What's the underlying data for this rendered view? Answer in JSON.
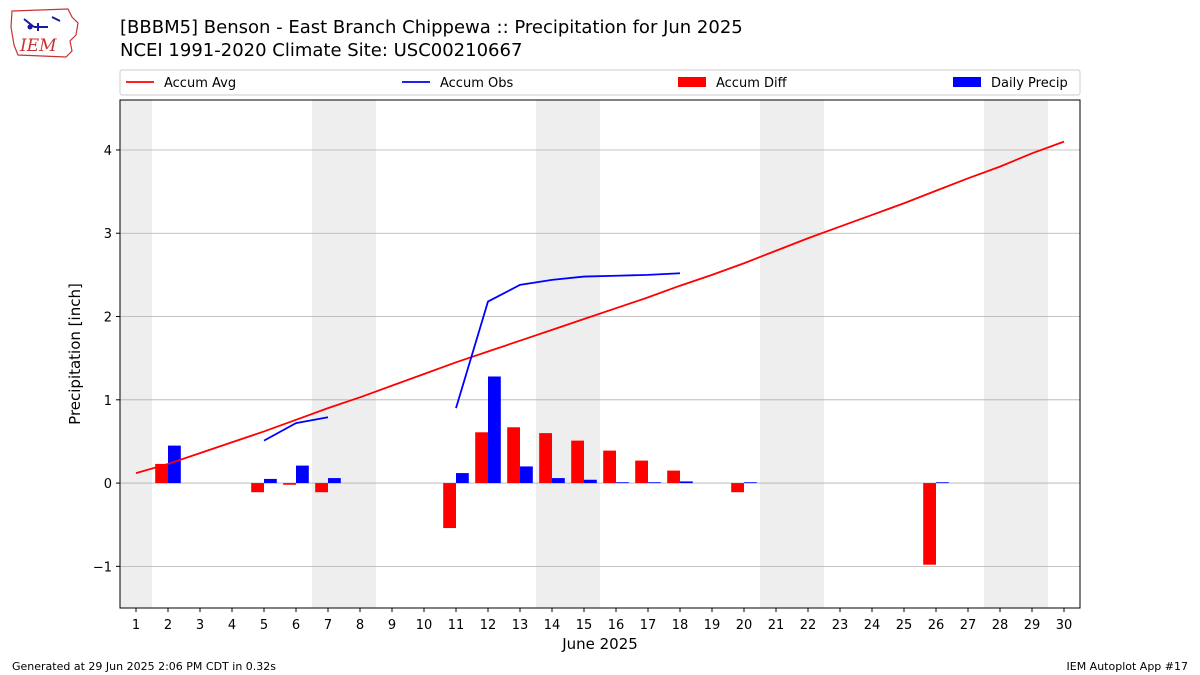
{
  "header": {
    "logo_text": "IEM",
    "title_line1": "[BBBM5] Benson - East Branch Chippewa :: Precipitation for Jun 2025",
    "title_line2": "NCEI 1991-2020 Climate Site: USC00210667"
  },
  "footer": {
    "left": "Generated at 29 Jun 2025 2:06 PM CDT in 0.32s",
    "right": "IEM Autoplot App #17"
  },
  "colors": {
    "accum_avg": "#ff0000",
    "accum_obs": "#0000ff",
    "accum_diff": "#ff0000",
    "daily_precip": "#0000ff",
    "weekend_shade": "#eeeeee",
    "grid": "#b0b0b0"
  },
  "chart_data": {
    "type": "bar",
    "xlabel": "June 2025",
    "ylabel": "Precipitation [inch]",
    "xlim": [
      0.5,
      30.5
    ],
    "ylim": [
      -1.5,
      4.6
    ],
    "yticks": [
      -1,
      0,
      1,
      2,
      3,
      4
    ],
    "ytick_labels": [
      "−1",
      "0",
      "1",
      "2",
      "3",
      "4"
    ],
    "xticks": [
      1,
      2,
      3,
      4,
      5,
      6,
      7,
      8,
      9,
      10,
      11,
      12,
      13,
      14,
      15,
      16,
      17,
      18,
      19,
      20,
      21,
      22,
      23,
      24,
      25,
      26,
      27,
      28,
      29,
      30
    ],
    "grid": "horizontal",
    "legend_position": "top",
    "legend": [
      "Accum Avg",
      "Accum Obs",
      "Accum Diff",
      "Daily Precip"
    ],
    "weekend_shading": [
      [
        0.5,
        1.5
      ],
      [
        6.5,
        8.5
      ],
      [
        13.5,
        15.5
      ],
      [
        20.5,
        22.5
      ],
      [
        27.5,
        29.5
      ]
    ],
    "series": [
      {
        "name": "Accum Avg",
        "kind": "line",
        "x": [
          1,
          2,
          3,
          4,
          5,
          6,
          7,
          8,
          9,
          10,
          11,
          12,
          13,
          14,
          15,
          16,
          17,
          18,
          19,
          20,
          21,
          22,
          23,
          24,
          25,
          26,
          27,
          28,
          29,
          30
        ],
        "values": [
          0.12,
          0.23,
          0.36,
          0.49,
          0.62,
          0.76,
          0.9,
          1.03,
          1.17,
          1.31,
          1.45,
          1.58,
          1.71,
          1.84,
          1.97,
          2.1,
          2.23,
          2.37,
          2.5,
          2.64,
          2.79,
          2.94,
          3.08,
          3.22,
          3.36,
          3.51,
          3.66,
          3.8,
          3.96,
          4.1
        ]
      },
      {
        "name": "Accum Obs",
        "kind": "line",
        "segments": [
          {
            "x": [
              5,
              6,
              7
            ],
            "values": [
              0.51,
              0.72,
              0.79
            ]
          },
          {
            "x": [
              11,
              12,
              13,
              14,
              15,
              16,
              17,
              18
            ],
            "values": [
              0.9,
              2.18,
              2.38,
              2.44,
              2.48,
              2.49,
              2.5,
              2.52
            ]
          }
        ]
      },
      {
        "name": "Accum Diff",
        "kind": "bar",
        "x": [
          2,
          5,
          6,
          7,
          11,
          12,
          13,
          14,
          15,
          16,
          17,
          18,
          20,
          26
        ],
        "values": [
          0.23,
          -0.11,
          -0.02,
          -0.11,
          -0.54,
          0.61,
          0.67,
          0.6,
          0.51,
          0.39,
          0.27,
          0.15,
          -0.11,
          -0.98
        ]
      },
      {
        "name": "Daily Precip",
        "kind": "bar",
        "x": [
          2,
          5,
          6,
          7,
          11,
          12,
          13,
          14,
          15,
          16,
          17,
          18,
          20,
          26
        ],
        "values": [
          0.45,
          0.05,
          0.21,
          0.06,
          0.12,
          1.28,
          0.2,
          0.06,
          0.04,
          0.01,
          0.01,
          0.02,
          0.01,
          0.01
        ]
      }
    ]
  }
}
